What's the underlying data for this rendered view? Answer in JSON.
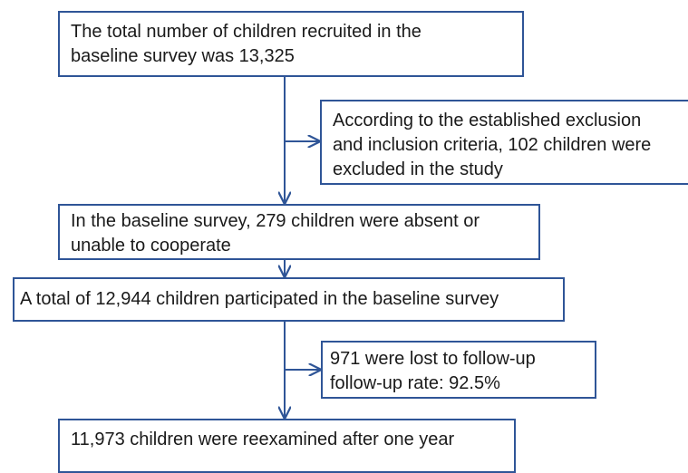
{
  "flowchart": {
    "recruited": "The total number of children recruited  in the\nbaseline survey was 13,325",
    "excluded": "According to the established exclusion\nand inclusion criteria, 102 children were\nexcluded in the study",
    "absent": "In the baseline survey, 279 children were absent or\nunable to cooperate",
    "participated": "A total of 12,944 children participated in the baseline survey",
    "lost": "971 were lost to follow-up\nfollow-up rate: 92.5%",
    "reexamined": "11,973 children were reexamined after one year"
  },
  "colors": {
    "border": "#2f5597",
    "connector": "#2f5597",
    "text": "#1a1a1a"
  }
}
